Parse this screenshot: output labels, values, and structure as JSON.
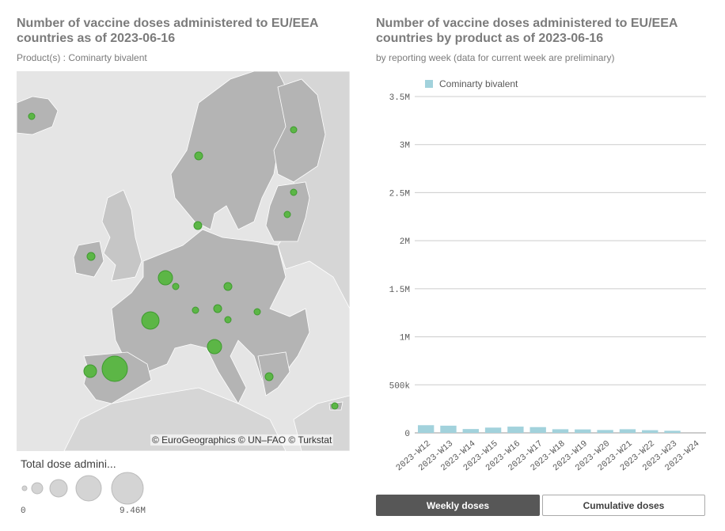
{
  "left_panel": {
    "title_line1": "Number of vaccine doses administered to EU/EEA",
    "title_line2": "countries as of 2023-06-16",
    "subtitle": "Product(s) : Cominarty bivalent",
    "attribution": "© EuroGeographics © UN–FAO © Turkstat",
    "legend_title": "Total dose admini...",
    "legend_min": "0",
    "legend_max": "9.46M",
    "colors": {
      "sea": "#e5e5e5",
      "land": "#c6c6c6",
      "member": "#b4b4b4",
      "bubble": "#5cb646",
      "bubble_stroke": "#3f9a30"
    }
  },
  "right_panel": {
    "title_line1": "Number of vaccine doses administered to EU/EEA",
    "title_line2": "countries by product as of 2023-06-16",
    "subtitle": "by reporting week (data for current week are preliminary)"
  },
  "chart_data": {
    "type": "bar",
    "categories": [
      "2023-W12",
      "2023-W13",
      "2023-W14",
      "2023-W15",
      "2023-W16",
      "2023-W17",
      "2023-W18",
      "2023-W19",
      "2023-W20",
      "2023-W21",
      "2023-W22",
      "2023-W23",
      "2023-W24"
    ],
    "series": [
      {
        "name": "Cominarty bivalent",
        "values": [
          80000,
          75000,
          40000,
          55000,
          65000,
          60000,
          38000,
          36000,
          30000,
          38000,
          28000,
          22000,
          0
        ],
        "color": "#a2d2dc"
      }
    ],
    "yticks": [
      0,
      500000,
      1000000,
      1500000,
      2000000,
      2500000,
      3000000,
      3500000
    ],
    "ytick_labels": [
      "0",
      "500k",
      "1M",
      "1.5M",
      "2M",
      "2.5M",
      "3M",
      "3.5M"
    ],
    "ylim": [
      0,
      3500000
    ],
    "legend_position": "top-left",
    "grid": true
  },
  "buttons": {
    "weekly": "Weekly doses",
    "cumulative": "Cumulative doses"
  }
}
